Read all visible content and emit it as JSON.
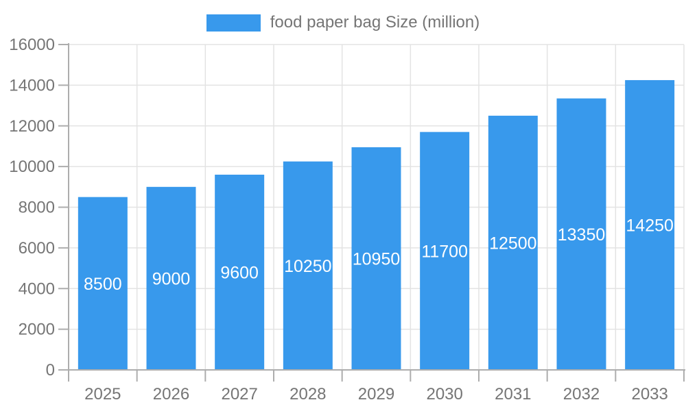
{
  "chart_data": {
    "type": "bar",
    "title": "",
    "legend_label": "food paper bag Size (million)",
    "legend_position": "top-center",
    "series": [
      {
        "name": "food paper bag Size (million)",
        "values": [
          8500,
          9000,
          9600,
          10250,
          10950,
          11700,
          12500,
          13350,
          14250
        ]
      }
    ],
    "categories": [
      "2025",
      "2026",
      "2027",
      "2028",
      "2029",
      "2030",
      "2031",
      "2032",
      "2033"
    ],
    "value_labels": [
      "8500",
      "9000",
      "9600",
      "10250",
      "10950",
      "11700",
      "12500",
      "13350",
      "14250"
    ],
    "xlabel": "",
    "ylabel": "",
    "ylim": [
      0,
      16000
    ],
    "ytick_step": 2000,
    "ytick_labels": [
      "0",
      "2000",
      "4000",
      "6000",
      "8000",
      "10000",
      "12000",
      "14000",
      "16000"
    ],
    "grid": true,
    "colors": {
      "bar": "#3899EC",
      "value_label": "#FFFFFF",
      "axis": "#ADADAD",
      "grid": "#E3E3E3",
      "text": "#757575"
    }
  }
}
